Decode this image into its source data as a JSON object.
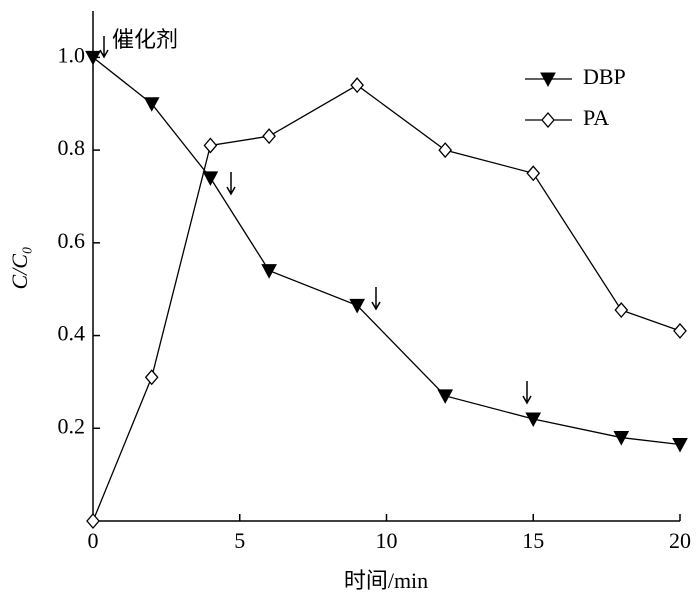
{
  "chart_data": {
    "type": "line",
    "xlabel": "时间/min",
    "ylabel": "C/C₀",
    "annotation": "催化剂",
    "xlim": [
      0,
      20
    ],
    "ylim": [
      0,
      1.1
    ],
    "xticks": [
      0,
      5,
      10,
      15,
      20
    ],
    "yticks": [
      0.2,
      0.4,
      0.6,
      0.8,
      {
        "value": 1,
        "label": "1.0"
      }
    ],
    "legend": "upper right",
    "series": [
      {
        "name": "DBP",
        "color": "#000000",
        "marker": "filled-triangle-down",
        "x": [
          0,
          2,
          4,
          6,
          9,
          12,
          15,
          18,
          20
        ],
        "values": [
          1.0,
          0.9,
          0.74,
          0.54,
          0.465,
          0.27,
          0.22,
          0.18,
          0.165
        ]
      },
      {
        "name": "PA",
        "color": "#000000",
        "marker": "open-diamond",
        "x": [
          0,
          2,
          4,
          6,
          9,
          12,
          15,
          18,
          20
        ],
        "values": [
          0,
          0.31,
          0.81,
          0.83,
          0.94,
          0.8,
          0.75,
          0.455,
          0.41
        ]
      }
    ]
  }
}
